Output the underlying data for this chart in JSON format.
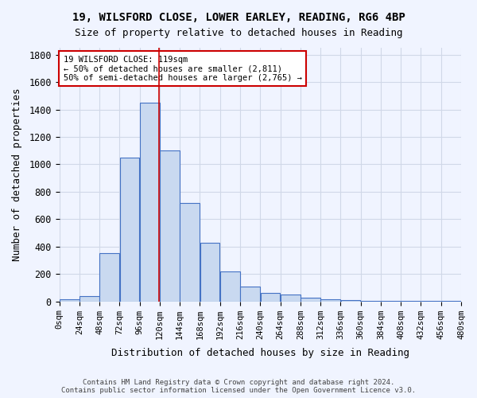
{
  "title_line1": "19, WILSFORD CLOSE, LOWER EARLEY, READING, RG6 4BP",
  "title_line2": "Size of property relative to detached houses in Reading",
  "xlabel": "Distribution of detached houses by size in Reading",
  "ylabel": "Number of detached properties",
  "footnote1": "Contains HM Land Registry data © Crown copyright and database right 2024.",
  "footnote2": "Contains public sector information licensed under the Open Government Licence v3.0.",
  "annotation_line1": "19 WILSFORD CLOSE: 119sqm",
  "annotation_line2": "← 50% of detached houses are smaller (2,811)",
  "annotation_line3": "50% of semi-detached houses are larger (2,765) →",
  "property_size": 119,
  "bar_color": "#c9d9f0",
  "bar_edge_color": "#4472c4",
  "vline_color": "#cc0000",
  "vline_x": 119,
  "grid_color": "#d0d8e8",
  "background_color": "#f0f4ff",
  "categories": [
    "0sqm",
    "24sqm",
    "48sqm",
    "72sqm",
    "96sqm",
    "120sqm",
    "144sqm",
    "168sqm",
    "192sqm",
    "216sqm",
    "240sqm",
    "264sqm",
    "288sqm",
    "312sqm",
    "336sqm",
    "360sqm",
    "384sqm",
    "408sqm",
    "432sqm",
    "456sqm",
    "480sqm"
  ],
  "bin_edges": [
    0,
    24,
    48,
    72,
    96,
    120,
    144,
    168,
    192,
    216,
    240,
    264,
    288,
    312,
    336,
    360,
    384,
    408,
    432,
    456,
    480
  ],
  "bar_heights": [
    15,
    40,
    350,
    1050,
    1450,
    1100,
    720,
    430,
    220,
    110,
    60,
    50,
    25,
    18,
    12,
    5,
    3,
    2,
    1,
    1
  ],
  "ylim": [
    0,
    1850
  ],
  "yticks": [
    0,
    200,
    400,
    600,
    800,
    1000,
    1200,
    1400,
    1600,
    1800
  ],
  "annotation_box_color": "#ffffff",
  "annotation_box_edge_color": "#cc0000"
}
